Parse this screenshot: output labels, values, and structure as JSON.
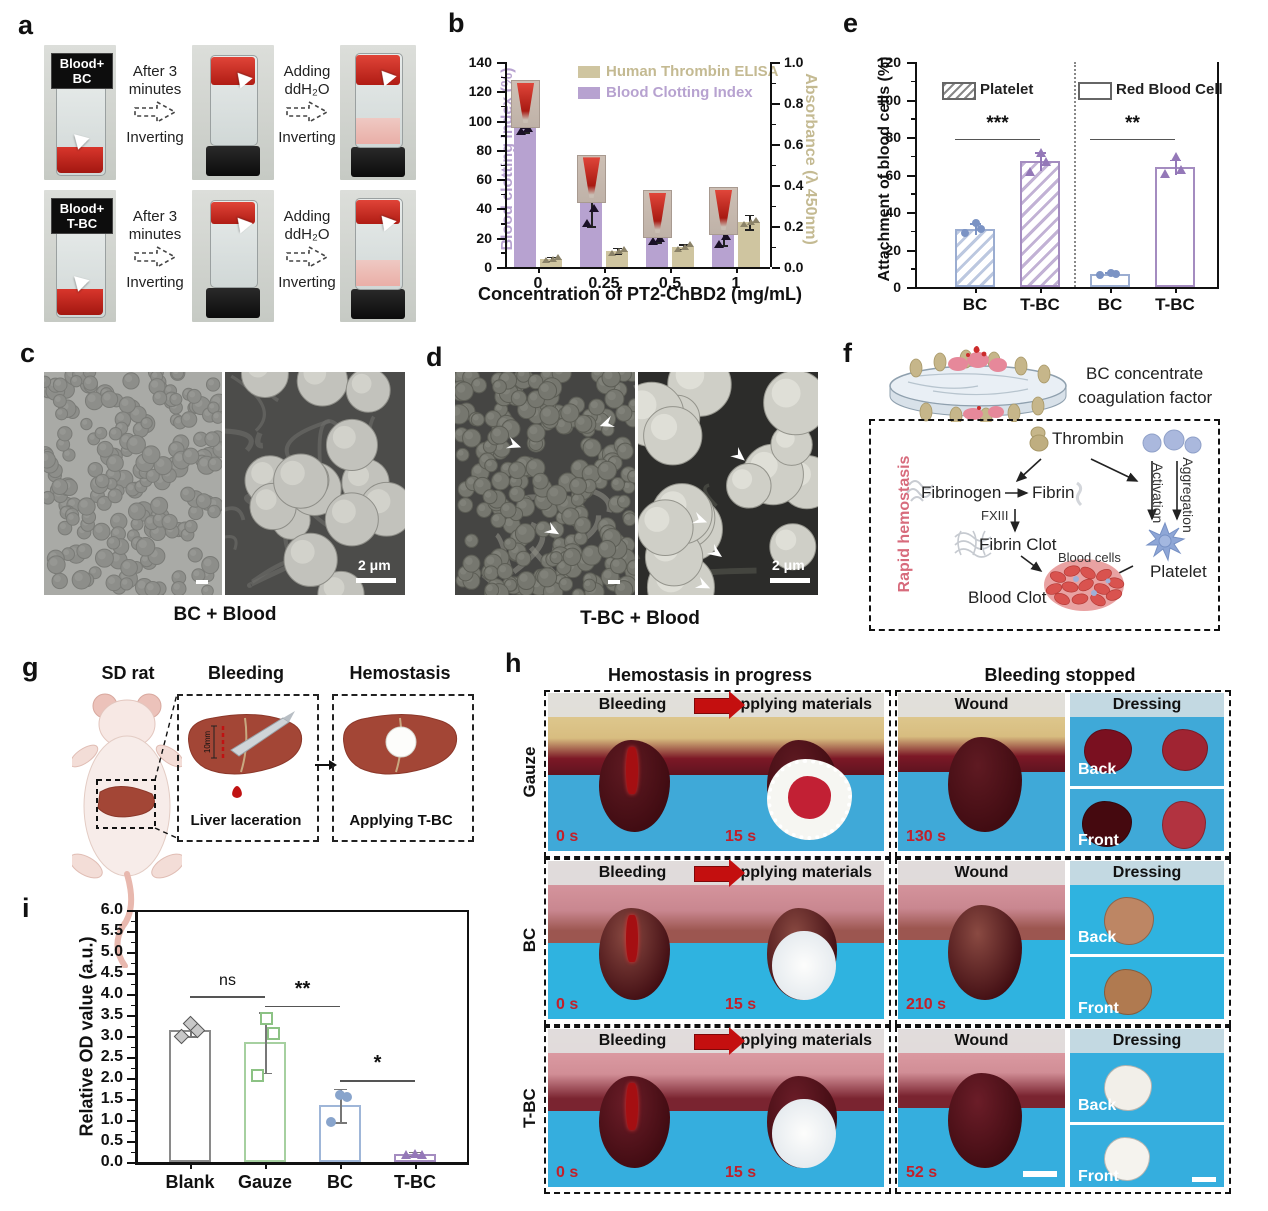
{
  "panels": {
    "a": {
      "label": "a",
      "rows": [
        {
          "vial1": "Blood+",
          "vial2": "BC",
          "s1a": "After 3",
          "s1b": "minutes",
          "s1c": "Inverting",
          "s2a": "Adding",
          "s2b": "ddH₂O",
          "s2c": "Inverting"
        },
        {
          "vial1": "Blood+",
          "vial2": "T-BC",
          "s1a": "After 3",
          "s1b": "minutes",
          "s1c": "Inverting",
          "s2a": "Adding",
          "s2b": "ddH₂O",
          "s2c": "Inverting"
        }
      ]
    },
    "b": {
      "label": "b"
    },
    "c": {
      "label": "c",
      "caption": "BC + Blood",
      "scale": "2 μm"
    },
    "d": {
      "label": "d",
      "caption": "T-BC + Blood",
      "scale": "2 μm"
    },
    "e": {
      "label": "e"
    },
    "f": {
      "label": "f",
      "cap1": "BC concentrate",
      "cap2": "coagulation factor",
      "side": "Rapid hemostasis",
      "thrombin": "Thrombin",
      "fibrinogen": "Fibrinogen",
      "fibrin": "Fibrin",
      "fxiii": "FXIII",
      "fibrin_clot": "Fibrin Clot",
      "activation": "Activation",
      "aggregation": "Aggregation",
      "platelet": "Platelet",
      "blood_cells": "Blood cells",
      "blood_clot": "Blood Clot"
    },
    "g": {
      "label": "g",
      "t1": "SD rat",
      "t2": "Bleeding",
      "t3": "Hemostasis",
      "c1": "Liver laceration",
      "c2": "Applying T-BC",
      "len": "10mm"
    },
    "h": {
      "label": "h",
      "header_left": "Hemostasis in progress",
      "header_right": "Bleeding stopped",
      "cols": [
        "Bleeding",
        "Applying materials",
        "Wound",
        "Dressing"
      ],
      "rows": [
        {
          "name": "Gauze",
          "t1": "0 s",
          "t2": "15 s",
          "t3": "130 s",
          "back": "Back",
          "front": "Front"
        },
        {
          "name": "BC",
          "t1": "0 s",
          "t2": "15 s",
          "t3": "210 s",
          "back": "Back",
          "front": "Front"
        },
        {
          "name": "T-BC",
          "t1": "0 s",
          "t2": "15 s",
          "t3": "52 s",
          "back": "Back",
          "front": "Front"
        }
      ]
    },
    "i": {
      "label": "i"
    }
  },
  "chart_data": [
    {
      "id": "panel-b",
      "type": "bar",
      "xlabel": "Concentration of PT2-ChBD2 (mg/mL)",
      "left_axis": {
        "label": "Blood clotting index (%)",
        "color": "#b7a2d0",
        "range": [
          0,
          140
        ],
        "ticks": [
          0,
          20,
          40,
          60,
          80,
          100,
          120,
          140
        ]
      },
      "right_axis": {
        "label": "Absorbance (λ 450nm)",
        "color": "#c4ba92",
        "range": [
          0,
          1.0
        ],
        "ticks": [
          "0.0",
          "0.2",
          "0.4",
          "0.6",
          "0.8",
          "1.0"
        ]
      },
      "categories": [
        "0",
        "0.25",
        "0.5",
        "1"
      ],
      "series": [
        {
          "name": "Blood Clotting Index",
          "axis": "left",
          "color": "#b7a2d0",
          "values": [
            95,
            44,
            20,
            22
          ],
          "errors": [
            3,
            16,
            3,
            7
          ],
          "points": [
            [
              93,
              95,
              97
            ],
            [
              30,
              40,
              62
            ],
            [
              18,
              20,
              23
            ],
            [
              16,
              21,
              29
            ]
          ]
        },
        {
          "name": "Human Thrombin ELISA",
          "axis": "right",
          "color": "#cfc5a0",
          "values": [
            0.04,
            0.08,
            0.1,
            0.22
          ],
          "errors": [
            0.01,
            0.015,
            0.012,
            0.035
          ],
          "points": [
            [
              0.035,
              0.04,
              0.05
            ],
            [
              0.07,
              0.08,
              0.09
            ],
            [
              0.09,
              0.1,
              0.11
            ],
            [
              0.21,
              0.22,
              0.23
            ]
          ]
        }
      ],
      "legend": [
        {
          "label": "Human Thrombin ELISA",
          "color": "#cfc5a0"
        },
        {
          "label": "Blood Clotting Index",
          "color": "#b7a2d0"
        }
      ],
      "grid": false,
      "legend_position": "top"
    },
    {
      "id": "panel-e",
      "type": "bar",
      "ylabel": "Attachment of blood cells (%)",
      "ylim": [
        0,
        120
      ],
      "yticks": [
        0,
        20,
        40,
        60,
        80,
        100,
        120
      ],
      "categories": [
        "BC",
        "T-BC",
        "BC",
        "T-BC"
      ],
      "groups": [
        {
          "name": "Platelet",
          "style": "hatched"
        },
        {
          "name": "Red Blood Cell",
          "style": "open"
        }
      ],
      "values": [
        31,
        67,
        7,
        64
      ],
      "errors": [
        3,
        5,
        1,
        4
      ],
      "points": [
        [
          29,
          31,
          34
        ],
        [
          62,
          67,
          72
        ],
        [
          6.5,
          7,
          7.5
        ],
        [
          61,
          63,
          70
        ]
      ],
      "bar_colors": [
        "#9badd1",
        "#a48cc0",
        "#9badd1",
        "#a48cc0"
      ],
      "significance": [
        {
          "label": "***",
          "x1": 0,
          "x2": 1,
          "y": 79
        },
        {
          "label": "**",
          "x1": 2,
          "x2": 3,
          "y": 79
        }
      ],
      "grid": false
    },
    {
      "id": "panel-i",
      "type": "bar",
      "ylabel": "Relative OD value (a.u.)",
      "ylim": [
        0,
        6.0
      ],
      "yticks": [
        "0.0",
        "0.5",
        "1.0",
        "1.5",
        "2.0",
        "2.5",
        "3.0",
        "3.5",
        "4.0",
        "4.5",
        "5.0",
        "5.5",
        "6.0"
      ],
      "categories": [
        "Blank",
        "Gauze",
        "BC",
        "T-BC"
      ],
      "values": [
        3.15,
        2.85,
        1.35,
        0.2
      ],
      "errors": [
        0.15,
        0.72,
        0.4,
        0.05
      ],
      "points": [
        [
          3.0,
          3.15,
          3.3
        ],
        [
          2.1,
          3.1,
          3.45
        ],
        [
          0.95,
          1.55,
          1.6
        ],
        [
          0.18,
          0.2,
          0.22
        ]
      ],
      "bar_colors": [
        "#8a8a8a",
        "#a6d0a0",
        "#9fb6d8",
        "#a48cc0"
      ],
      "markers": [
        "diamond",
        "square",
        "circle",
        "triangle"
      ],
      "significance": [
        {
          "label": "ns",
          "x1": 0,
          "x2": 1,
          "y": 3.95
        },
        {
          "label": "**",
          "x1": 1,
          "x2": 2,
          "y": 3.72
        },
        {
          "label": "*",
          "x1": 2,
          "x2": 3,
          "y": 1.95
        }
      ],
      "grid": false
    }
  ]
}
